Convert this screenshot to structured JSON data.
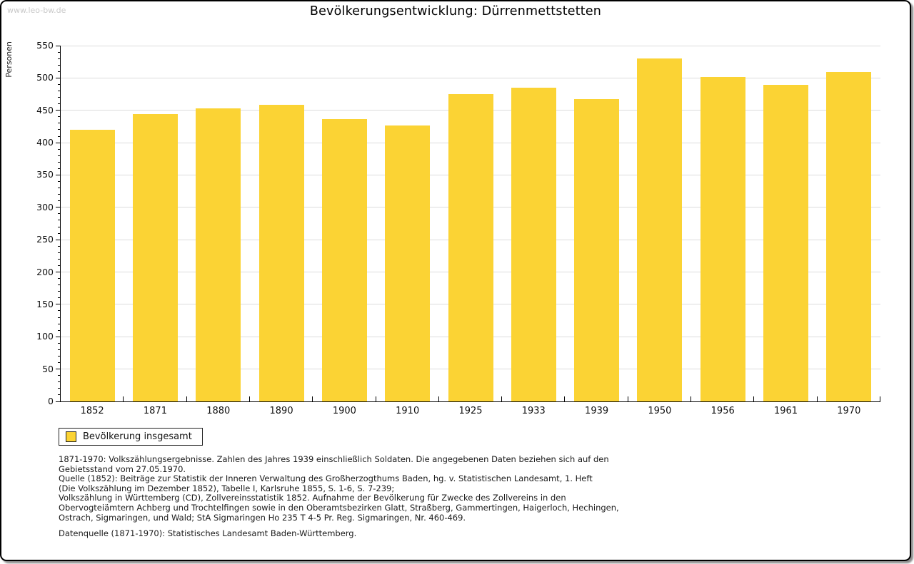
{
  "page": {
    "watermark": "www.leo-bw.de"
  },
  "chart_data": {
    "type": "bar",
    "title": "Bevölkerungsentwicklung: Dürrenmettstetten",
    "xlabel": "",
    "ylabel": "Personen",
    "categories": [
      "1852",
      "1871",
      "1880",
      "1890",
      "1900",
      "1910",
      "1925",
      "1933",
      "1939",
      "1950",
      "1956",
      "1961",
      "1970"
    ],
    "values": [
      420,
      444,
      453,
      458,
      437,
      427,
      475,
      485,
      467,
      530,
      501,
      489,
      509
    ],
    "series_name": "Bevölkerung insgesamt",
    "ylim": [
      0,
      550
    ],
    "y_major_step": 50,
    "y_minor_step": 10,
    "grid": true,
    "legend_position": "bottom-left",
    "bar_color": "#fbd334",
    "grid_color": "#dcdcdc",
    "axis_color": "#000000"
  },
  "legend": {
    "label": "Bevölkerung insgesamt"
  },
  "footer": {
    "lines": [
      "1871-1970: Volkszählungsergebnisse. Zahlen des Jahres 1939 einschließlich Soldaten. Die angegebenen Daten beziehen sich auf den",
      "Gebietsstand vom 27.05.1970.",
      "Quelle (1852): Beiträge zur Statistik der Inneren Verwaltung des Großherzogthums Baden, hg. v. Statistischen Landesamt, 1. Heft",
      "(Die Volkszählung im Dezember 1852), Tabelle I, Karlsruhe 1855, S. 1-6, S. 7-239;",
      "Volkszählung in Württemberg (CD), Zollvereinsstatistik 1852. Aufnahme der Bevölkerung für Zwecke des Zollvereins in den",
      "Obervogteiämtern Achberg und Trochtelfingen sowie in den Oberamtsbezirken Glatt, Straßberg, Gammertingen, Haigerloch, Hechingen,",
      "Ostrach, Sigmaringen, und Wald; StA Sigmaringen Ho 235 T 4-5 Pr. Reg. Sigmaringen, Nr. 460-469."
    ],
    "datasource": "Datenquelle (1871-1970): Statistisches Landesamt Baden-Württemberg."
  }
}
